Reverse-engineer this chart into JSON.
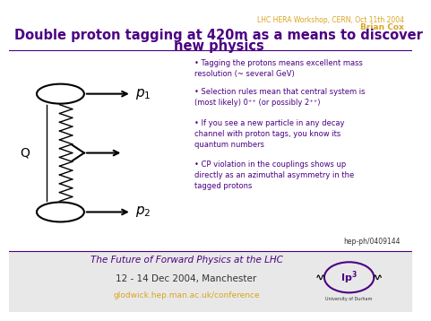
{
  "header_text": "LHC HERA Workshop, CERN, Oct 11th 2004",
  "header_author": "Brian Cox",
  "header_color": "#DAA520",
  "title_line1": "Double proton tagging at 420m as a means to discover",
  "title_line2": "new physics",
  "title_color": "#4B0082",
  "title_fontsize": 10.5,
  "bullet_color": "#4B0082",
  "bullet_data": [
    [
      "Tagging the protons means excellent mass\nresolution (~ several GeV)",
      0.835
    ],
    [
      "Selection rules mean that central system is\n(most likely) 0⁺⁺ (or possibly 2⁺⁺)",
      0.74
    ],
    [
      "If you see a new particle in any decay\nchannel with proton tags, you know its\nquantum numbers",
      0.635
    ],
    [
      "CP violation in the couplings shows up\ndirectly as an azimuthal asymmetry in the\ntagged protons",
      0.5
    ]
  ],
  "arxiv": "hep-ph/0409144",
  "arxiv_color": "#333333",
  "footer_title": "The Future of Forward Physics at the LHC",
  "footer_date": "12 - 14 Dec 2004, Manchester",
  "footer_url": "glodwick.hep.man.ac.uk/conference",
  "footer_url_color": "#DAA520",
  "footer_title_color": "#4B0082",
  "separator_color": "#4B0082",
  "bg_color": "#FFFFFF",
  "footer_bg": "#E8E8E8"
}
